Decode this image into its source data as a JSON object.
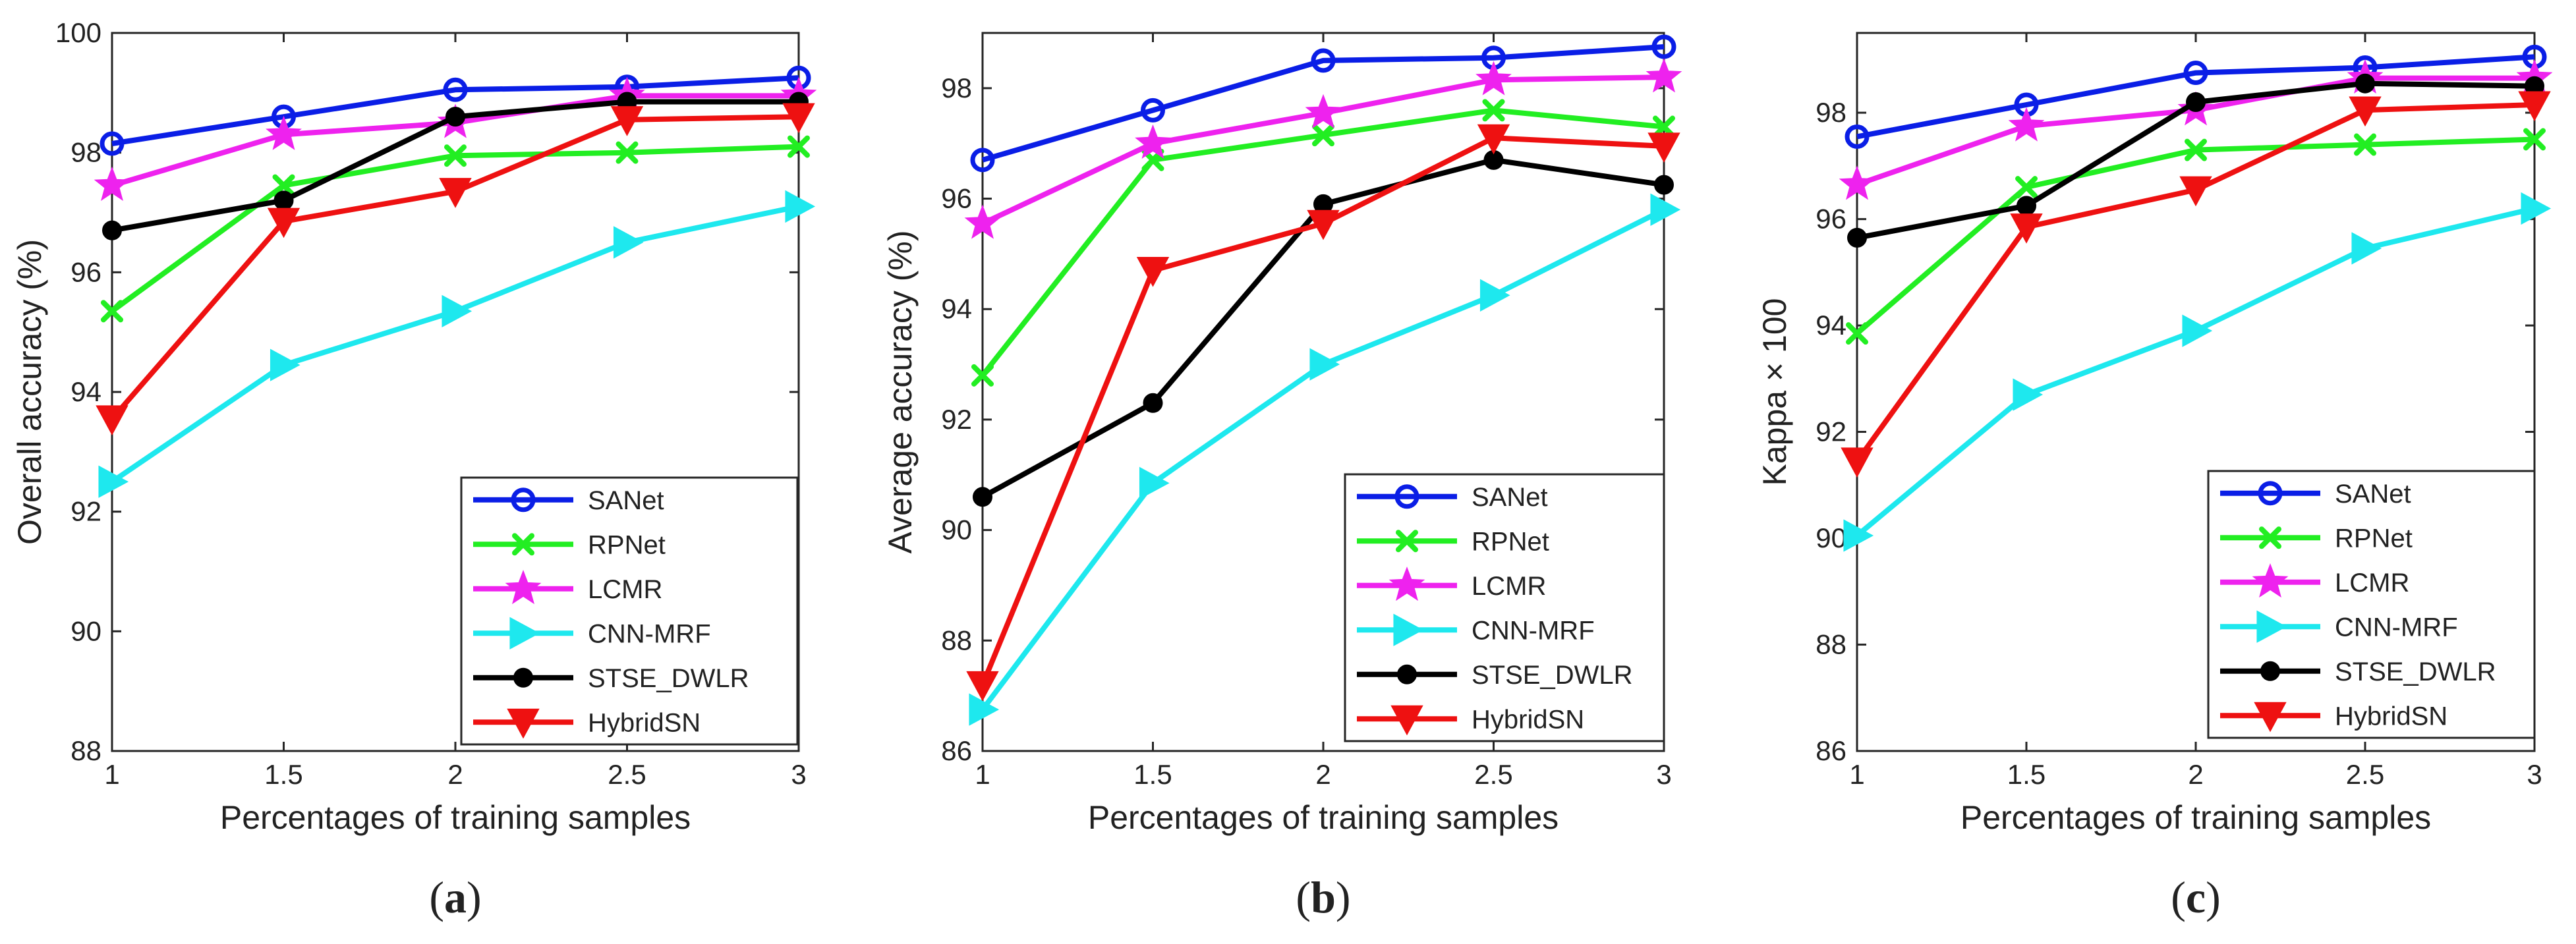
{
  "colors": {
    "SANet": "#0a1ee6",
    "RPNet": "#22ee22",
    "LCMR": "#ee22ee",
    "CNN-MRF": "#1ee8ee",
    "STSE_DWLR": "#000000",
    "HybridSN": "#ee1111"
  },
  "markers": {
    "SANet": "circle",
    "RPNet": "x-mark",
    "LCMR": "star",
    "CNN-MRF": "triangle-right",
    "STSE_DWLR": "filled-circle",
    "HybridSN": "triangle-down"
  },
  "chart_data": [
    {
      "type": "line",
      "panel": "a",
      "caption_letter": "a",
      "caption": "(a)",
      "xlabel": "Percentages of training samples",
      "ylabel": "Overall accuracy (%)",
      "x": [
        1,
        1.5,
        2,
        2.5,
        3
      ],
      "xticks": [
        "1",
        "1.5",
        "2",
        "2.5",
        "3"
      ],
      "xlim": [
        1,
        3
      ],
      "ylim": [
        88,
        100
      ],
      "yticks": [
        "88",
        "90",
        "92",
        "94",
        "96",
        "98",
        "100"
      ],
      "ytick_values": [
        88,
        90,
        92,
        94,
        96,
        98,
        100
      ],
      "legend_position": "bottom-right",
      "series": [
        {
          "name": "SANet",
          "values": [
            98.15,
            98.6,
            99.05,
            99.1,
            99.25
          ]
        },
        {
          "name": "RPNet",
          "values": [
            95.35,
            97.45,
            97.95,
            98.0,
            98.1
          ]
        },
        {
          "name": "LCMR",
          "values": [
            97.45,
            98.3,
            98.5,
            98.95,
            98.95
          ]
        },
        {
          "name": "CNN-MRF",
          "values": [
            92.5,
            94.45,
            95.35,
            96.5,
            97.1
          ]
        },
        {
          "name": "STSE_DWLR",
          "values": [
            96.7,
            97.2,
            98.6,
            98.85,
            98.85
          ]
        },
        {
          "name": "HybridSN",
          "values": [
            93.55,
            96.85,
            97.35,
            98.55,
            98.6
          ]
        }
      ]
    },
    {
      "type": "line",
      "panel": "b",
      "caption_letter": "b",
      "caption": "(b)",
      "xlabel": "Percentages of training samples",
      "ylabel": "Average accuracy (%)",
      "x": [
        1,
        1.5,
        2,
        2.5,
        3
      ],
      "xticks": [
        "1",
        "1.5",
        "2",
        "2.5",
        "3"
      ],
      "xlim": [
        1,
        3
      ],
      "ylim": [
        86,
        99
      ],
      "yticks": [
        "86",
        "88",
        "90",
        "92",
        "94",
        "96",
        "98"
      ],
      "ytick_values": [
        86,
        88,
        90,
        92,
        94,
        96,
        98
      ],
      "legend_position": "bottom-right",
      "series": [
        {
          "name": "SANet",
          "values": [
            96.7,
            97.6,
            98.5,
            98.55,
            98.75
          ]
        },
        {
          "name": "RPNet",
          "values": [
            92.8,
            96.7,
            97.15,
            97.6,
            97.3
          ]
        },
        {
          "name": "LCMR",
          "values": [
            95.55,
            97.0,
            97.55,
            98.15,
            98.2
          ]
        },
        {
          "name": "CNN-MRF",
          "values": [
            86.75,
            90.85,
            93.0,
            94.25,
            95.8
          ]
        },
        {
          "name": "STSE_DWLR",
          "values": [
            90.6,
            92.3,
            95.9,
            96.7,
            96.25
          ]
        },
        {
          "name": "HybridSN",
          "values": [
            87.2,
            94.7,
            95.55,
            97.1,
            96.95
          ]
        }
      ]
    },
    {
      "type": "line",
      "panel": "c",
      "caption_letter": "c",
      "caption": "(c)",
      "xlabel": "Percentages of training samples",
      "ylabel": "Kappa × 100",
      "x": [
        1,
        1.5,
        2,
        2.5,
        3
      ],
      "xticks": [
        "1",
        "1.5",
        "2",
        "2.5",
        "3"
      ],
      "xlim": [
        1,
        3
      ],
      "ylim": [
        86,
        99.5
      ],
      "yticks": [
        "86",
        "88",
        "90",
        "92",
        "94",
        "96",
        "98"
      ],
      "ytick_values": [
        86,
        88,
        90,
        92,
        94,
        96,
        98
      ],
      "legend_position": "bottom-right",
      "series": [
        {
          "name": "SANet",
          "values": [
            97.55,
            98.15,
            98.75,
            98.85,
            99.05
          ]
        },
        {
          "name": "RPNet",
          "values": [
            93.85,
            96.6,
            97.3,
            97.4,
            97.5
          ]
        },
        {
          "name": "LCMR",
          "values": [
            96.65,
            97.75,
            98.05,
            98.65,
            98.65
          ]
        },
        {
          "name": "CNN-MRF",
          "values": [
            90.05,
            92.7,
            93.9,
            95.45,
            96.2
          ]
        },
        {
          "name": "STSE_DWLR",
          "values": [
            95.65,
            96.25,
            98.2,
            98.55,
            98.5
          ]
        },
        {
          "name": "HybridSN",
          "values": [
            91.45,
            95.85,
            96.55,
            98.05,
            98.15
          ]
        }
      ]
    }
  ]
}
